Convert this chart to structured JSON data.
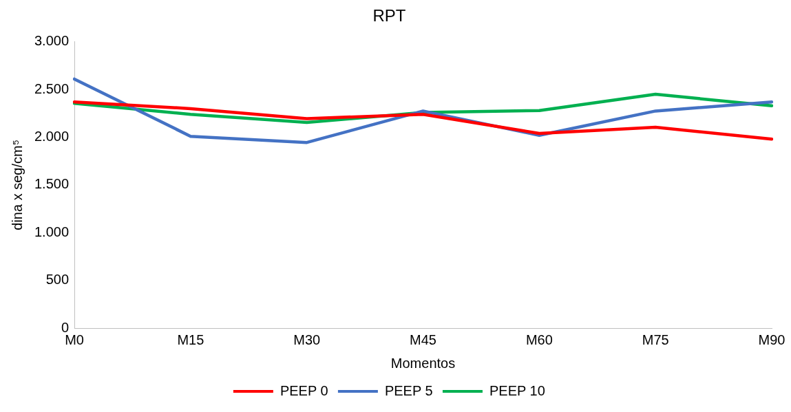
{
  "chart_data": {
    "type": "line",
    "title": "RPT",
    "xlabel": "Momentos",
    "ylabel": "dina x seg/cm⁵",
    "categories": [
      "M0",
      "M15",
      "M30",
      "M45",
      "M60",
      "M75",
      "M90"
    ],
    "series": [
      {
        "name": "PEEP 0",
        "color": "#ff0000",
        "values": [
          2370,
          2300,
          2195,
          2240,
          2040,
          2105,
          1980
        ]
      },
      {
        "name": "PEEP 5",
        "color": "#4472c4",
        "values": [
          2610,
          2010,
          1945,
          2275,
          2020,
          2275,
          2370
        ]
      },
      {
        "name": "PEEP 10",
        "color": "#00b050",
        "values": [
          2355,
          2240,
          2155,
          2260,
          2280,
          2450,
          2330
        ]
      }
    ],
    "ylim": [
      0,
      3000
    ],
    "yticks": [
      0,
      500,
      {
        "value": 1000,
        "label": "1.000"
      },
      {
        "value": 1500,
        "label": "1.500"
      },
      {
        "value": 2000,
        "label": "2.000"
      },
      {
        "value": 2500,
        "label": "2.500"
      },
      {
        "value": 3000,
        "label": "3.000"
      }
    ],
    "grid": false,
    "legend": "bottom",
    "marker": "none"
  }
}
